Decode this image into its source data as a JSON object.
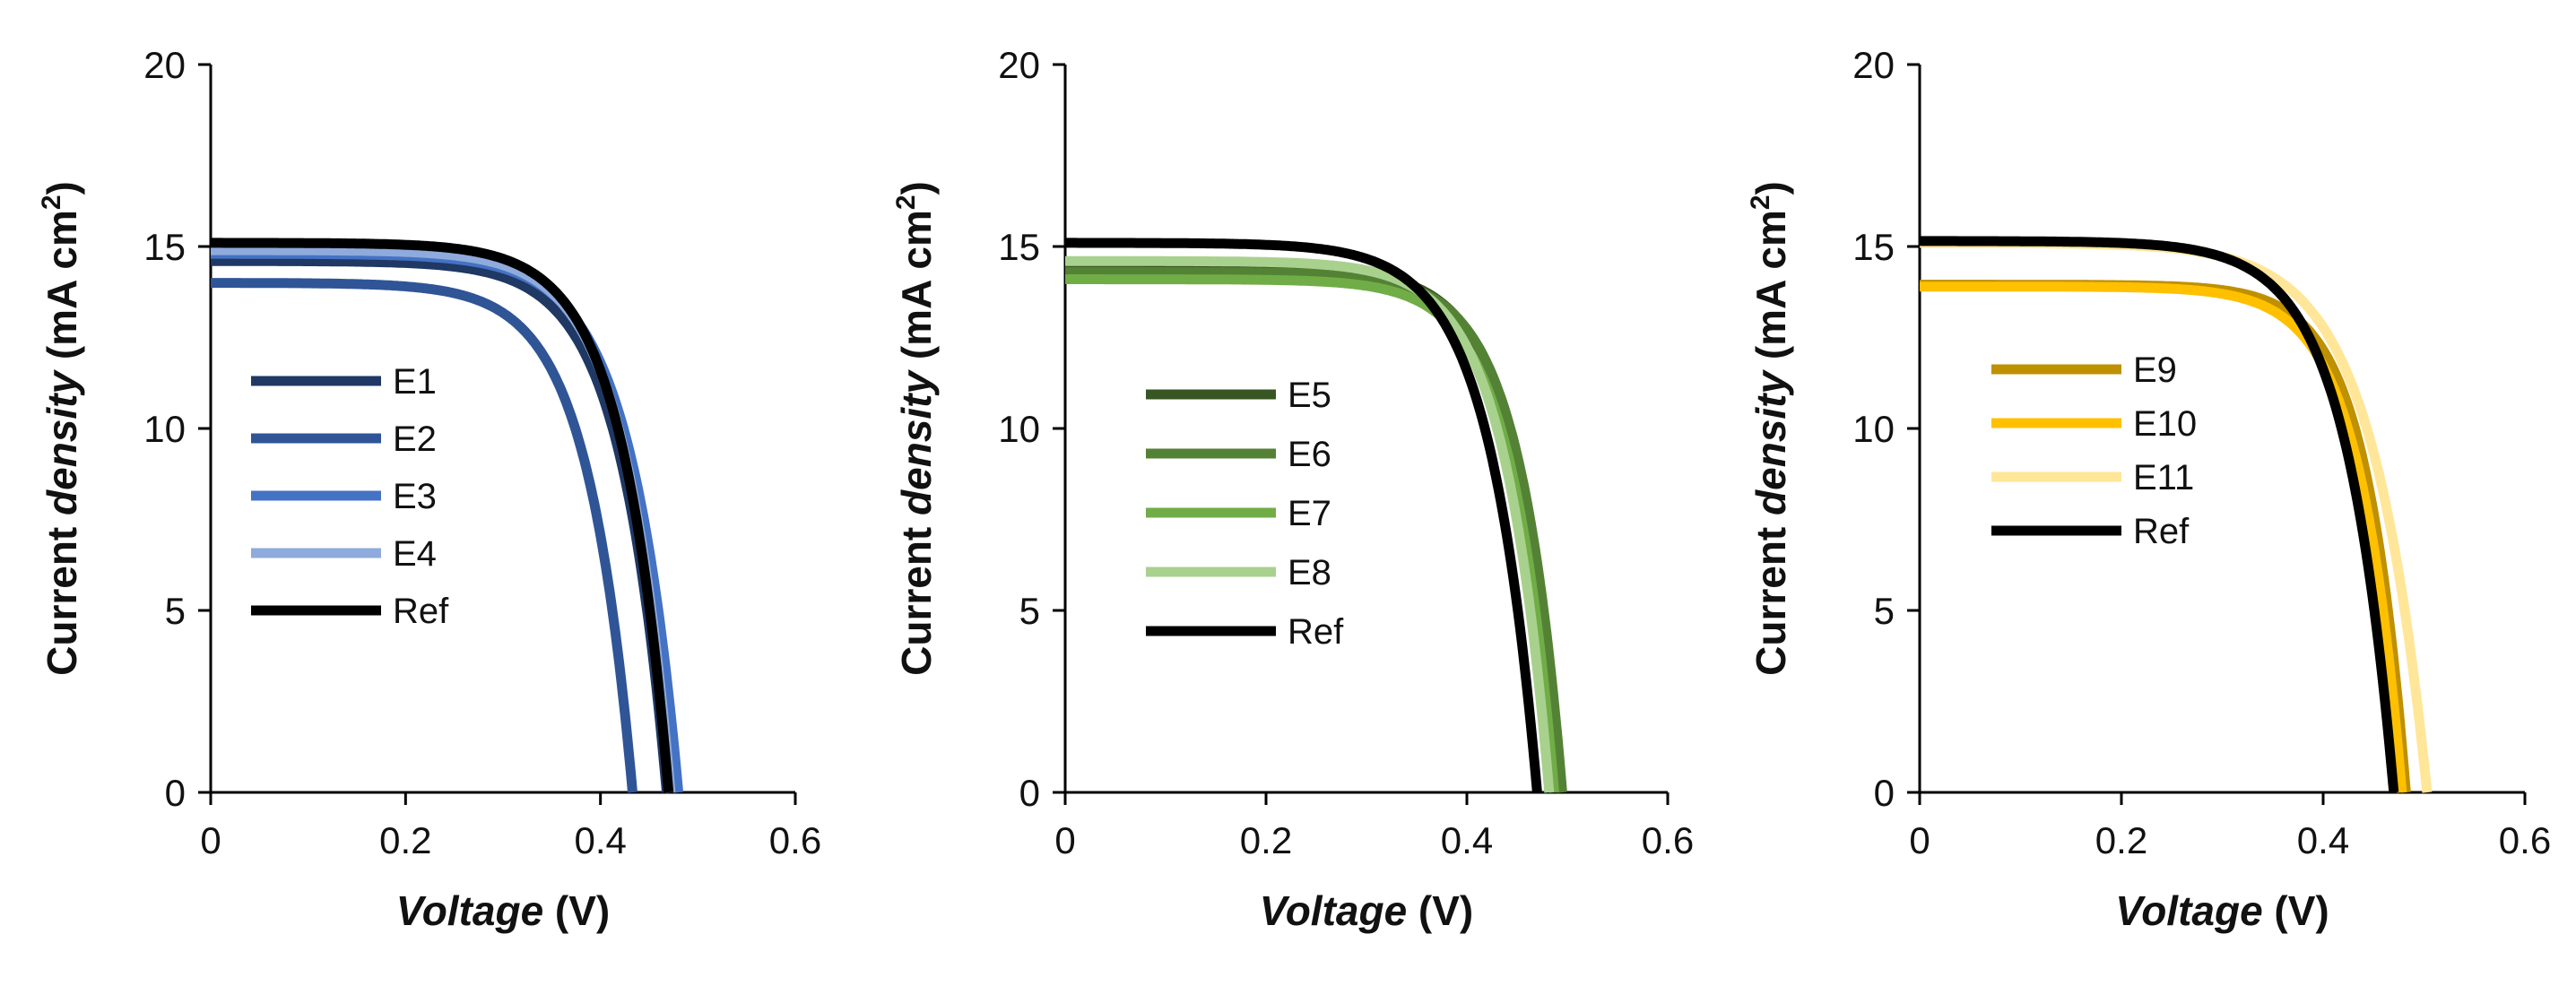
{
  "chart_data": [
    {
      "type": "line",
      "xlabel": "Voltage (V)",
      "xlabel_italic": "Voltage",
      "xlabel_rest": " (V)",
      "ylabel": "Current density (mA cm2)",
      "ylabel_a": "Current ",
      "ylabel_b": "density",
      "ylabel_c": " (mA cm",
      "ylabel_sup": "2",
      "ylabel_d": ")",
      "xlim": [
        0,
        0.6
      ],
      "ylim": [
        0,
        20
      ],
      "xticks": [
        "0",
        "0.2",
        "0.4",
        "0.6"
      ],
      "yticks": [
        "0",
        "5",
        "10",
        "15",
        "20"
      ],
      "legend_position": "center-left",
      "series": [
        {
          "name": "E1",
          "color": "#1f3864",
          "jsc": 14.6,
          "voc": 0.468,
          "ideality": 0.048
        },
        {
          "name": "E2",
          "color": "#2f5597",
          "jsc": 14.0,
          "voc": 0.433,
          "ideality": 0.047
        },
        {
          "name": "E3",
          "color": "#4472c4",
          "jsc": 14.8,
          "voc": 0.48,
          "ideality": 0.05
        },
        {
          "name": "E4",
          "color": "#8faadc",
          "jsc": 14.9,
          "voc": 0.472,
          "ideality": 0.048
        },
        {
          "name": "Ref",
          "color": "#000000",
          "jsc": 15.1,
          "voc": 0.47,
          "ideality": 0.048
        }
      ]
    },
    {
      "type": "line",
      "xlabel": "Voltage (V)",
      "xlabel_italic": "Voltage",
      "xlabel_rest": " (V)",
      "ylabel": "Current density (mA cm2)",
      "ylabel_a": "Current ",
      "ylabel_b": "density",
      "ylabel_c": " (mA cm",
      "ylabel_sup": "2",
      "ylabel_d": ")",
      "xlim": [
        0,
        0.6
      ],
      "ylim": [
        0,
        20
      ],
      "xticks": [
        "0",
        "0.2",
        "0.4",
        "0.6"
      ],
      "yticks": [
        "0",
        "5",
        "10",
        "15",
        "20"
      ],
      "legend_position": "center-left",
      "series": [
        {
          "name": "E5",
          "color": "#375623",
          "jsc": 14.4,
          "voc": 0.492,
          "ideality": 0.043
        },
        {
          "name": "E6",
          "color": "#548235",
          "jsc": 14.3,
          "voc": 0.495,
          "ideality": 0.043
        },
        {
          "name": "E7",
          "color": "#70ad47",
          "jsc": 14.1,
          "voc": 0.487,
          "ideality": 0.043
        },
        {
          "name": "E8",
          "color": "#a9d18e",
          "jsc": 14.6,
          "voc": 0.482,
          "ideality": 0.045
        },
        {
          "name": "Ref",
          "color": "#000000",
          "jsc": 15.1,
          "voc": 0.47,
          "ideality": 0.048
        }
      ]
    },
    {
      "type": "line",
      "xlabel": "Voltage (V)",
      "xlabel_italic": "Voltage",
      "xlabel_rest": " (V)",
      "ylabel": "Current density (mA cm2)",
      "ylabel_a": "Current ",
      "ylabel_b": "density",
      "ylabel_c": " (mA cm",
      "ylabel_sup": "2",
      "ylabel_d": ")",
      "xlim": [
        0,
        0.6
      ],
      "ylim": [
        0,
        20
      ],
      "xticks": [
        "0",
        "0.2",
        "0.4",
        "0.6"
      ],
      "yticks": [
        "0",
        "5",
        "10",
        "15",
        "20"
      ],
      "legend_position": "center-left",
      "series": [
        {
          "name": "E9",
          "color": "#bf9000",
          "jsc": 13.95,
          "voc": 0.482,
          "ideality": 0.04
        },
        {
          "name": "E10",
          "color": "#ffc000",
          "jsc": 13.9,
          "voc": 0.478,
          "ideality": 0.042
        },
        {
          "name": "E11",
          "color": "#ffe699",
          "jsc": 15.1,
          "voc": 0.503,
          "ideality": 0.055
        },
        {
          "name": "Ref",
          "color": "#000000",
          "jsc": 15.15,
          "voc": 0.47,
          "ideality": 0.048
        }
      ]
    }
  ]
}
